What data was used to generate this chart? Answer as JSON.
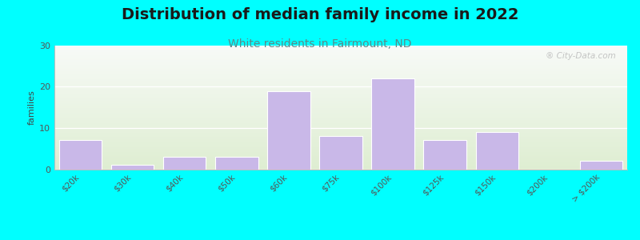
{
  "title": "Distribution of median family income in 2022",
  "subtitle": "White residents in Fairmount, ND",
  "ylabel": "families",
  "categories": [
    "$20k",
    "$30k",
    "$40k",
    "$50k",
    "$60k",
    "$75k",
    "$100k",
    "$125k",
    "$150k",
    "$200k",
    "> $200k"
  ],
  "values": [
    7,
    1,
    3,
    3,
    19,
    8,
    22,
    7,
    9,
    0,
    2
  ],
  "bar_color": "#c9b8e8",
  "bar_edgecolor": "#ffffff",
  "bg_color_top": "#f8f8f8",
  "bg_color_bottom": "#deecd0",
  "outer_bg": "#00ffff",
  "title_fontsize": 14,
  "subtitle_fontsize": 10,
  "subtitle_color": "#5a8a8a",
  "ylabel_fontsize": 8,
  "tick_fontsize": 7.5,
  "ylim": [
    0,
    30
  ],
  "yticks": [
    0,
    10,
    20,
    30
  ],
  "watermark": "® City-Data.com"
}
